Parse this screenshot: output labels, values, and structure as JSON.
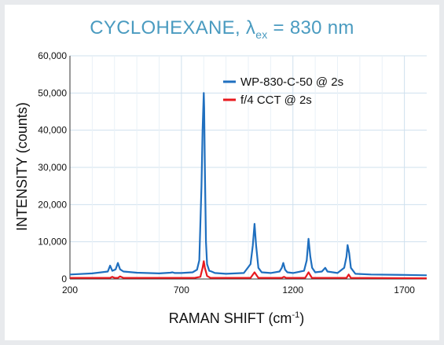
{
  "chart_data": {
    "type": "line",
    "title_main": "CYCLOHEXANE, λ",
    "title_sub": "ex",
    "title_tail": " = 830 nm",
    "xlabel_main": "RAMAN SHIFT (cm",
    "xlabel_sup": "-1",
    "xlabel_tail": ")",
    "ylabel": "INTENSITY (counts)",
    "xlim": [
      200,
      1800
    ],
    "ylim": [
      0,
      60000
    ],
    "xticks": [
      200,
      700,
      1200,
      1700
    ],
    "xtick_labels": [
      "200",
      "700",
      "1200",
      "1700"
    ],
    "yticks": [
      0,
      10000,
      20000,
      30000,
      40000,
      50000,
      60000
    ],
    "ytick_labels": [
      "0",
      "10,000",
      "20,000",
      "30,000",
      "40,000",
      "50,000",
      "60,000"
    ],
    "grid": true,
    "legend_position": "top-right",
    "series": [
      {
        "name": "WP-830-C-50 @ 2s",
        "color": "#1f6fbf",
        "x": [
          200,
          300,
          370,
          380,
          390,
          405,
          415,
          425,
          440,
          500,
          600,
          650,
          660,
          670,
          700,
          750,
          770,
          780,
          790,
          795,
          800,
          802,
          805,
          810,
          815,
          825,
          835,
          850,
          900,
          980,
          1010,
          1020,
          1028,
          1035,
          1045,
          1060,
          1100,
          1140,
          1150,
          1157,
          1165,
          1175,
          1200,
          1250,
          1262,
          1270,
          1278,
          1286,
          1300,
          1330,
          1345,
          1355,
          1400,
          1430,
          1440,
          1445,
          1452,
          1460,
          1480,
          1550,
          1700,
          1800
        ],
        "y": [
          1200,
          1500,
          2000,
          3600,
          2200,
          2600,
          4300,
          2600,
          2000,
          1700,
          1500,
          1700,
          1800,
          1600,
          1600,
          1800,
          2500,
          5000,
          25000,
          40000,
          50000,
          46000,
          30000,
          10000,
          4000,
          2200,
          2000,
          1600,
          1400,
          1600,
          4000,
          9000,
          14800,
          9000,
          3000,
          1800,
          1600,
          2000,
          3000,
          4300,
          2500,
          1800,
          1600,
          2200,
          5000,
          10800,
          6000,
          3000,
          1800,
          2000,
          3000,
          2000,
          1600,
          3000,
          6000,
          9100,
          7000,
          3000,
          1400,
          1200,
          1100,
          1000
        ]
      },
      {
        "name": "f/4 CCT @ 2s",
        "color": "#e8191e",
        "x": [
          200,
          380,
          390,
          400,
          415,
          425,
          440,
          760,
          785,
          795,
          800,
          805,
          815,
          830,
          1010,
          1028,
          1045,
          1150,
          1160,
          1170,
          1255,
          1270,
          1285,
          1440,
          1450,
          1460,
          1800
        ],
        "y": [
          300,
          300,
          600,
          300,
          300,
          700,
          300,
          300,
          600,
          3000,
          4800,
          3000,
          800,
          300,
          300,
          1800,
          300,
          300,
          600,
          300,
          300,
          1800,
          300,
          300,
          1200,
          300,
          200
        ]
      }
    ]
  }
}
